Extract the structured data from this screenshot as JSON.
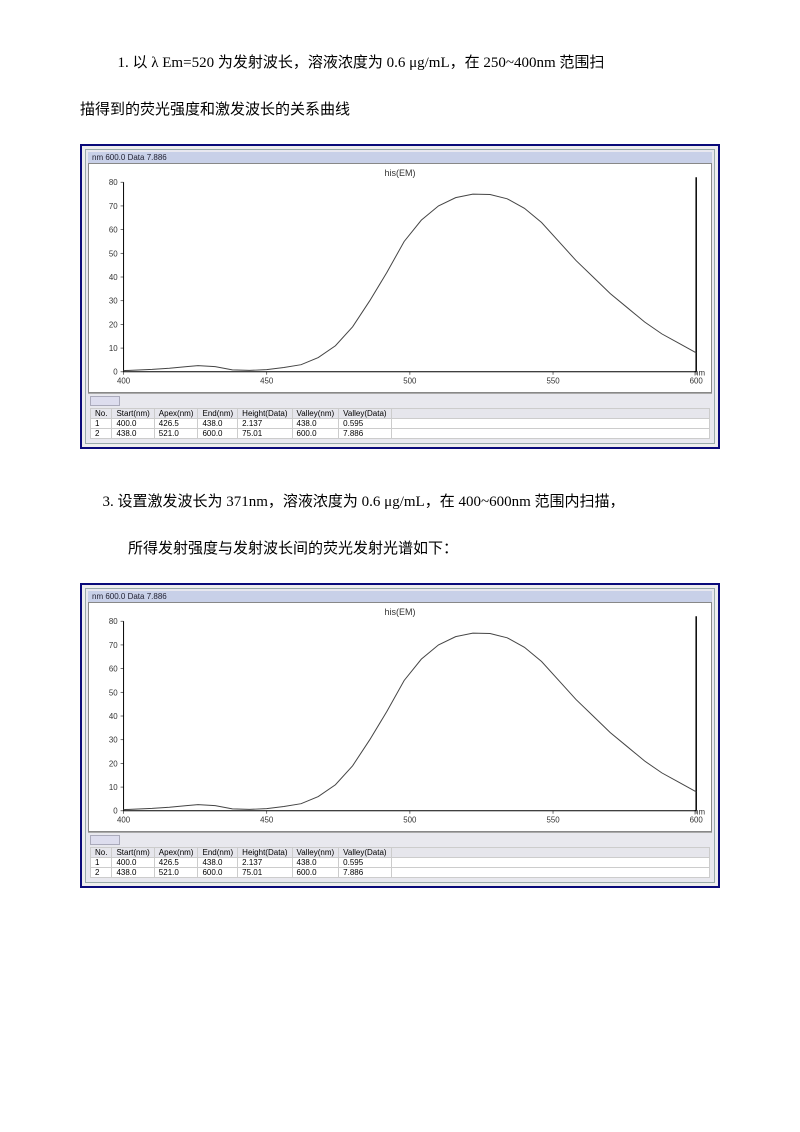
{
  "text": {
    "para1a": "1. 以 λ Em=520 为发射波长，溶液浓度为 0.6 μg/mL，在 250~400nm 范围扫",
    "para1b": "描得到的荧光强度和激发波长的关系曲线",
    "para2a": "3.  设置激发波长为 371nm，溶液浓度为 0.6 μg/mL，在 400~600nm 范围内扫描，",
    "para2b": "所得发射强度与发射波长间的荧光发射光谱如下："
  },
  "chart": {
    "top_strip": "nm  600.0  Data  7.886",
    "title": "his(EM)",
    "type": "line",
    "xlim": [
      400,
      600
    ],
    "ylim": [
      0,
      80
    ],
    "yticks": [
      0,
      10,
      20,
      30,
      40,
      50,
      60,
      70,
      80
    ],
    "xticks": [
      400,
      450,
      500,
      550,
      600
    ],
    "x_unit": "nm",
    "background_color": "#ffffff",
    "line_color": "#555555",
    "curve": [
      [
        400,
        0.5
      ],
      [
        410,
        1
      ],
      [
        416,
        1.5
      ],
      [
        422,
        2.2
      ],
      [
        426,
        2.6
      ],
      [
        432,
        2.2
      ],
      [
        438,
        0.8
      ],
      [
        444,
        0.6
      ],
      [
        450,
        0.9
      ],
      [
        456,
        1.8
      ],
      [
        462,
        3
      ],
      [
        468,
        6
      ],
      [
        474,
        11
      ],
      [
        480,
        19
      ],
      [
        486,
        30
      ],
      [
        492,
        42
      ],
      [
        498,
        55
      ],
      [
        504,
        64
      ],
      [
        510,
        70
      ],
      [
        516,
        73.5
      ],
      [
        522,
        75
      ],
      [
        528,
        74.8
      ],
      [
        534,
        73
      ],
      [
        540,
        69
      ],
      [
        546,
        63
      ],
      [
        552,
        55
      ],
      [
        558,
        47
      ],
      [
        564,
        40
      ],
      [
        570,
        33
      ],
      [
        576,
        27
      ],
      [
        582,
        21
      ],
      [
        588,
        16
      ],
      [
        594,
        12
      ],
      [
        600,
        8
      ]
    ]
  },
  "table": {
    "columns": [
      "No.",
      "Start(nm)",
      "Apex(nm)",
      "End(nm)",
      "Height(Data)",
      "Valley(nm)",
      "Valley(Data)"
    ],
    "rows": [
      [
        "1",
        "400.0",
        "426.5",
        "438.0",
        "2.137",
        "438.0",
        "0.595"
      ],
      [
        "2",
        "438.0",
        "521.0",
        "600.0",
        "75.01",
        "600.0",
        "7.886"
      ]
    ]
  }
}
